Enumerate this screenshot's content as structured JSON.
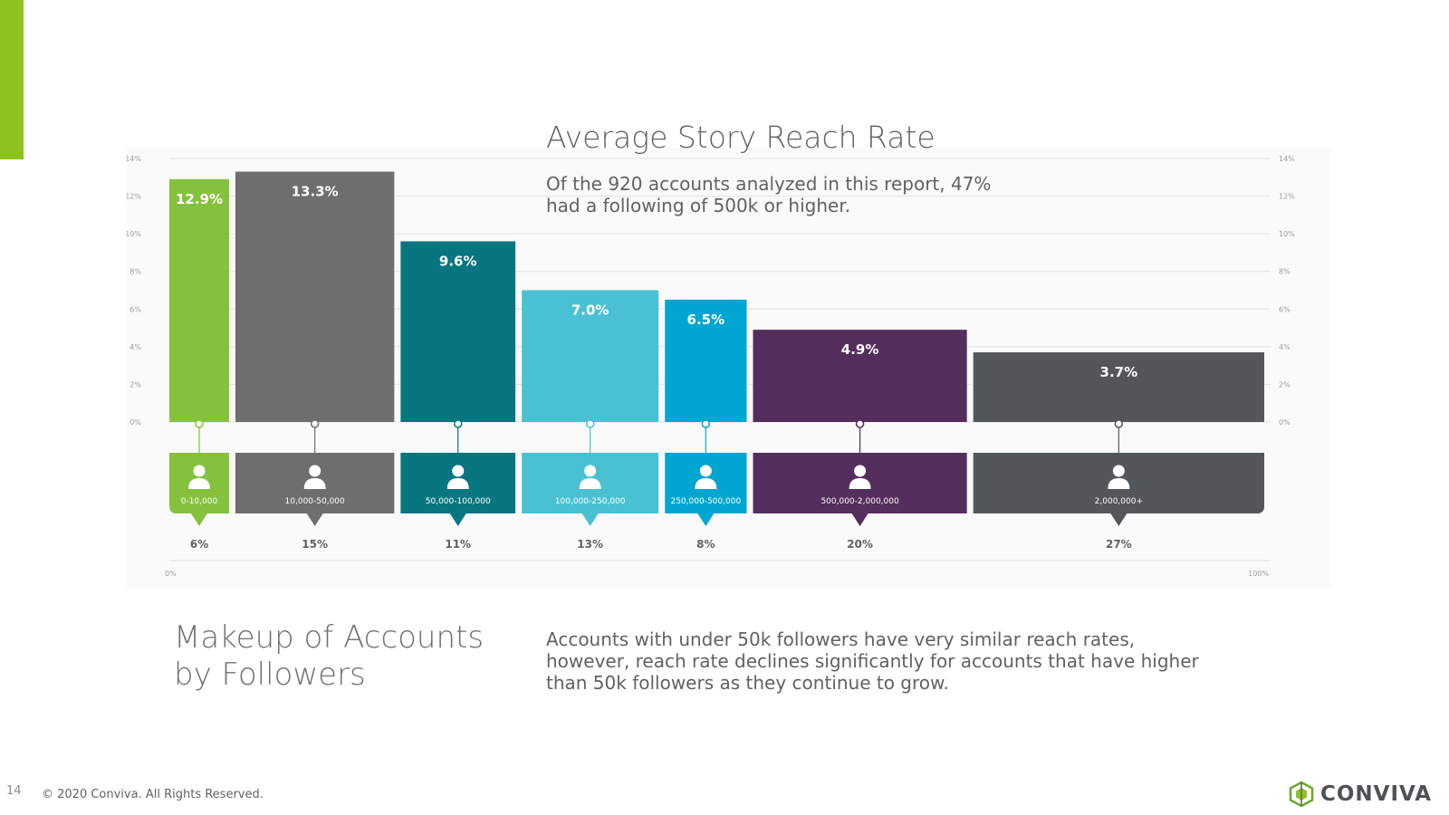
{
  "page": {
    "title": "Average Story Reach Rate",
    "intro": "Of the 920 accounts analyzed in this report, 47% had a following of 500k or higher.",
    "makeup_title": "Makeup of Accounts by Followers",
    "makeup_description": "Accounts with under 50k followers have very similar reach rates, however, reach rate declines significantly for accounts that have higher than 50k followers as they continue to grow.",
    "page_number": "14",
    "copyright": "© 2020 Conviva. All Rights Reserved.",
    "logo_text": "CONVIVA",
    "logo_icon": "conviva-logo-icon",
    "accent_color": "#8dc21f"
  },
  "chart_data": {
    "type": "bar",
    "title": "Average Story Reach Rate",
    "ylim": [
      0,
      14
    ],
    "y_ticks": [
      "0%",
      "2%",
      "4%",
      "6%",
      "8%",
      "10%",
      "12%",
      "14%"
    ],
    "x_axis_labels": [
      "0%",
      "100%"
    ],
    "grid": true,
    "icon": "person-icon",
    "categories": [
      "0-10,000",
      "10,000-50,000",
      "50,000-100,000",
      "100,000-250,000",
      "250,000-500,000",
      "500,000-2,000,000",
      "2,000,000+"
    ],
    "values": [
      12.9,
      13.3,
      9.6,
      7.0,
      6.5,
      4.9,
      3.7
    ],
    "value_labels": [
      "12.9%",
      "13.3%",
      "9.6%",
      "7.0%",
      "6.5%",
      "4.9%",
      "3.7%"
    ],
    "share_of_accounts": [
      6,
      15,
      11,
      13,
      8,
      20,
      27
    ],
    "share_labels": [
      "6%",
      "15%",
      "11%",
      "13%",
      "8%",
      "20%",
      "27%"
    ],
    "colors": [
      "#86c13e",
      "#6c6f6d",
      "#087680",
      "#4ac1d3",
      "#00a6cf",
      "#542e5c",
      "#535759"
    ]
  }
}
